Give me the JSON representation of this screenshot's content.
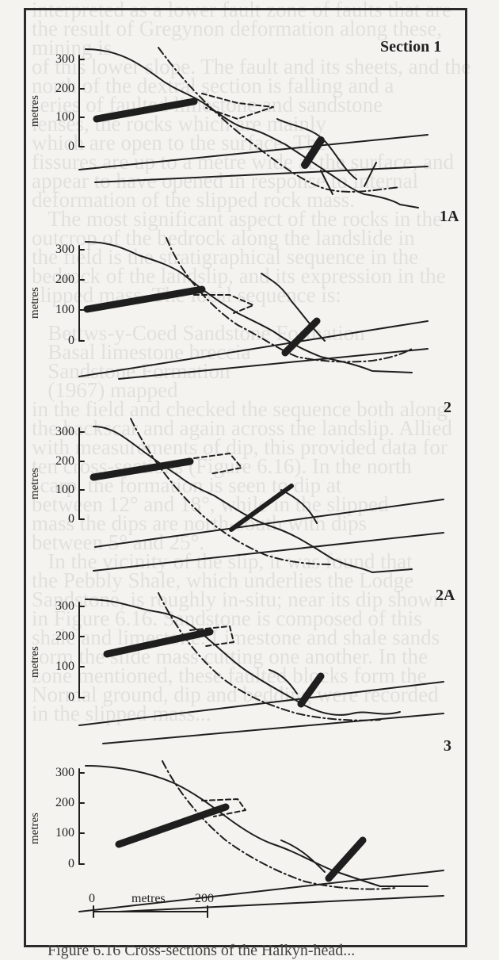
{
  "sections": [
    {
      "label": "Section 1",
      "ylabel": "metres",
      "ticks": [
        "300",
        "200",
        "100",
        "0"
      ]
    },
    {
      "label": "1A",
      "ylabel": "metres",
      "ticks": [
        "300",
        "200",
        "100",
        "0"
      ]
    },
    {
      "label": "2",
      "ylabel": "metres",
      "ticks": [
        "300",
        "200",
        "100",
        "0"
      ]
    },
    {
      "label": "2A",
      "ylabel": "metres",
      "ticks": [
        "300",
        "200",
        "100",
        "0"
      ]
    },
    {
      "label": "3",
      "ylabel": "metres",
      "ticks": [
        "300",
        "200",
        "100",
        "0"
      ]
    }
  ],
  "scale_bar": {
    "start": "0",
    "label": "metres",
    "end": "200"
  },
  "caption": "Figure 6.16 Cross-sections of the Halkyn-head..."
}
